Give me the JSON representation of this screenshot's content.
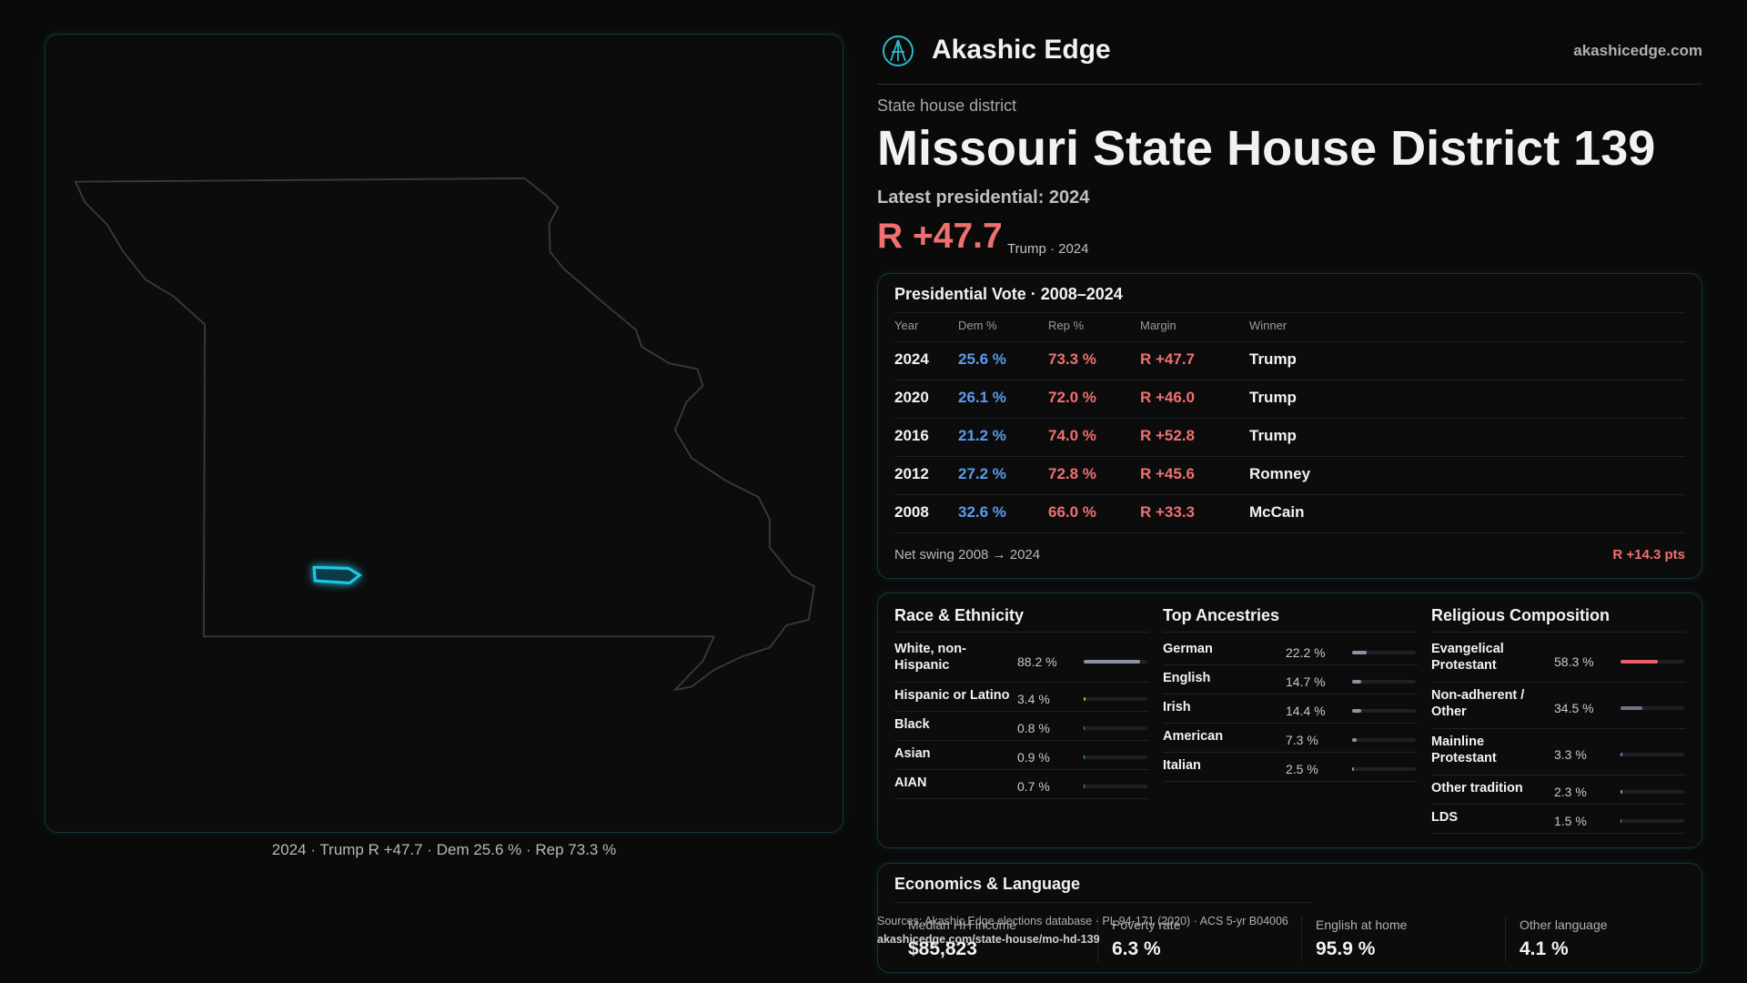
{
  "brand": {
    "name": "Akashic Edge",
    "url": "akashicedge.com"
  },
  "district": {
    "kind": "State house district",
    "title": "Missouri State House District 139",
    "latest": "Latest presidential: 2024",
    "margin": "R +47.7",
    "margin_note": "Trump · 2024"
  },
  "map": {
    "caption": "2024 · Trump R +47.7 · Dem 25.6 % · Rep 73.3 %"
  },
  "presidential": {
    "title": "Presidential Vote · 2008–2024",
    "columns": [
      "Year",
      "Dem %",
      "Rep %",
      "Margin",
      "Winner"
    ],
    "rows": [
      [
        "2024",
        "25.6 %",
        "73.3 %",
        "R +47.7",
        "Trump"
      ],
      [
        "2020",
        "26.1 %",
        "72.0 %",
        "R +46.0",
        "Trump"
      ],
      [
        "2016",
        "21.2 %",
        "74.0 %",
        "R +52.8",
        "Trump"
      ],
      [
        "2012",
        "27.2 %",
        "72.8 %",
        "R +45.6",
        "Romney"
      ],
      [
        "2008",
        "32.6 %",
        "66.0 %",
        "R +33.3",
        "McCain"
      ]
    ],
    "swing_label": "Net swing 2008 → 2024",
    "swing": "R +14.3 pts"
  },
  "race": {
    "title": "Race & Ethnicity",
    "items": [
      {
        "name": "White, non-Hispanic",
        "value": 88.2,
        "label": "88.2 %",
        "color": "#8a94a6"
      },
      {
        "name": "Hispanic or Latino",
        "value": 3.4,
        "label": "3.4 %",
        "color": "#e0a030"
      },
      {
        "name": "Black",
        "value": 0.8,
        "label": "0.8 %",
        "color": "#4a8fd8"
      },
      {
        "name": "Asian",
        "value": 0.9,
        "label": "0.9 %",
        "color": "#3bb8a0"
      },
      {
        "name": "AIAN",
        "value": 0.7,
        "label": "0.7 %",
        "color": "#d8703a"
      }
    ]
  },
  "ancestry": {
    "title": "Top Ancestries",
    "items": [
      {
        "name": "German",
        "value": 22.2,
        "label": "22.2 %",
        "color": "#8a94a6"
      },
      {
        "name": "English",
        "value": 14.7,
        "label": "14.7 %",
        "color": "#8a94a6"
      },
      {
        "name": "Irish",
        "value": 14.4,
        "label": "14.4 %",
        "color": "#8a94a6"
      },
      {
        "name": "American",
        "value": 7.3,
        "label": "7.3 %",
        "color": "#8a94a6"
      },
      {
        "name": "Italian",
        "value": 2.5,
        "label": "2.5 %",
        "color": "#8a94a6"
      }
    ]
  },
  "religion": {
    "title": "Religious Composition",
    "items": [
      {
        "name": "Evangelical Protestant",
        "value": 58.3,
        "label": "58.3 %",
        "color": "#e8606a"
      },
      {
        "name": "Non-adherent / Other",
        "value": 34.5,
        "label": "34.5 %",
        "color": "#6e7584"
      },
      {
        "name": "Mainline Protestant",
        "value": 3.3,
        "label": "3.3 %",
        "color": "#4a8fd8"
      },
      {
        "name": "Other tradition",
        "value": 2.3,
        "label": "2.3 %",
        "color": "#8a94a6"
      },
      {
        "name": "LDS",
        "value": 1.5,
        "label": "1.5 %",
        "color": "#3bb8a0"
      }
    ]
  },
  "economics": {
    "title": "Economics & Language",
    "items": [
      {
        "label": "Median HH income",
        "value": "$85,823"
      },
      {
        "label": "Poverty rate",
        "value": "6.3 %"
      },
      {
        "label": "English at home",
        "value": "95.9 %"
      },
      {
        "label": "Other language",
        "value": "4.1 %"
      }
    ]
  },
  "footer": {
    "sources": "Sources: Akashic Edge elections database · PL 94-171 (2020) · ACS 5-yr B04006",
    "url": "akashicedge.com/state-house/mo-hd-139"
  }
}
